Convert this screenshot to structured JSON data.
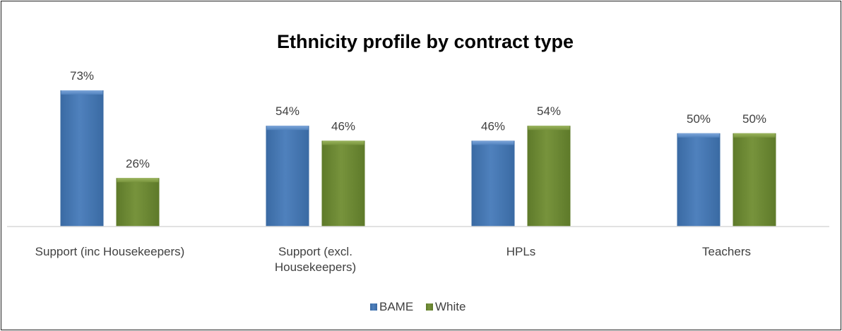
{
  "chart_data": {
    "type": "bar",
    "title": "Ethnicity profile by contract type",
    "categories": [
      [
        "Support (inc Housekeepers)"
      ],
      [
        "Support (excl.",
        "Housekeepers)"
      ],
      [
        "HPLs"
      ],
      [
        "Teachers"
      ]
    ],
    "series": [
      {
        "name": "BAME",
        "values": [
          73,
          54,
          46,
          50
        ],
        "labels": [
          "73%",
          "54%",
          "46%",
          "50%"
        ],
        "color": "#4F81BD",
        "dark": "#3A6AA3",
        "light": "#7EA6DA"
      },
      {
        "name": "White",
        "values": [
          26,
          46,
          54,
          50
        ],
        "labels": [
          "26%",
          "46%",
          "54%",
          "50%"
        ],
        "color": "#77933C",
        "dark": "#5E7A2A",
        "light": "#9BB55E"
      }
    ],
    "ylim": [
      0,
      73
    ],
    "legend": "bottom",
    "grid": false
  }
}
